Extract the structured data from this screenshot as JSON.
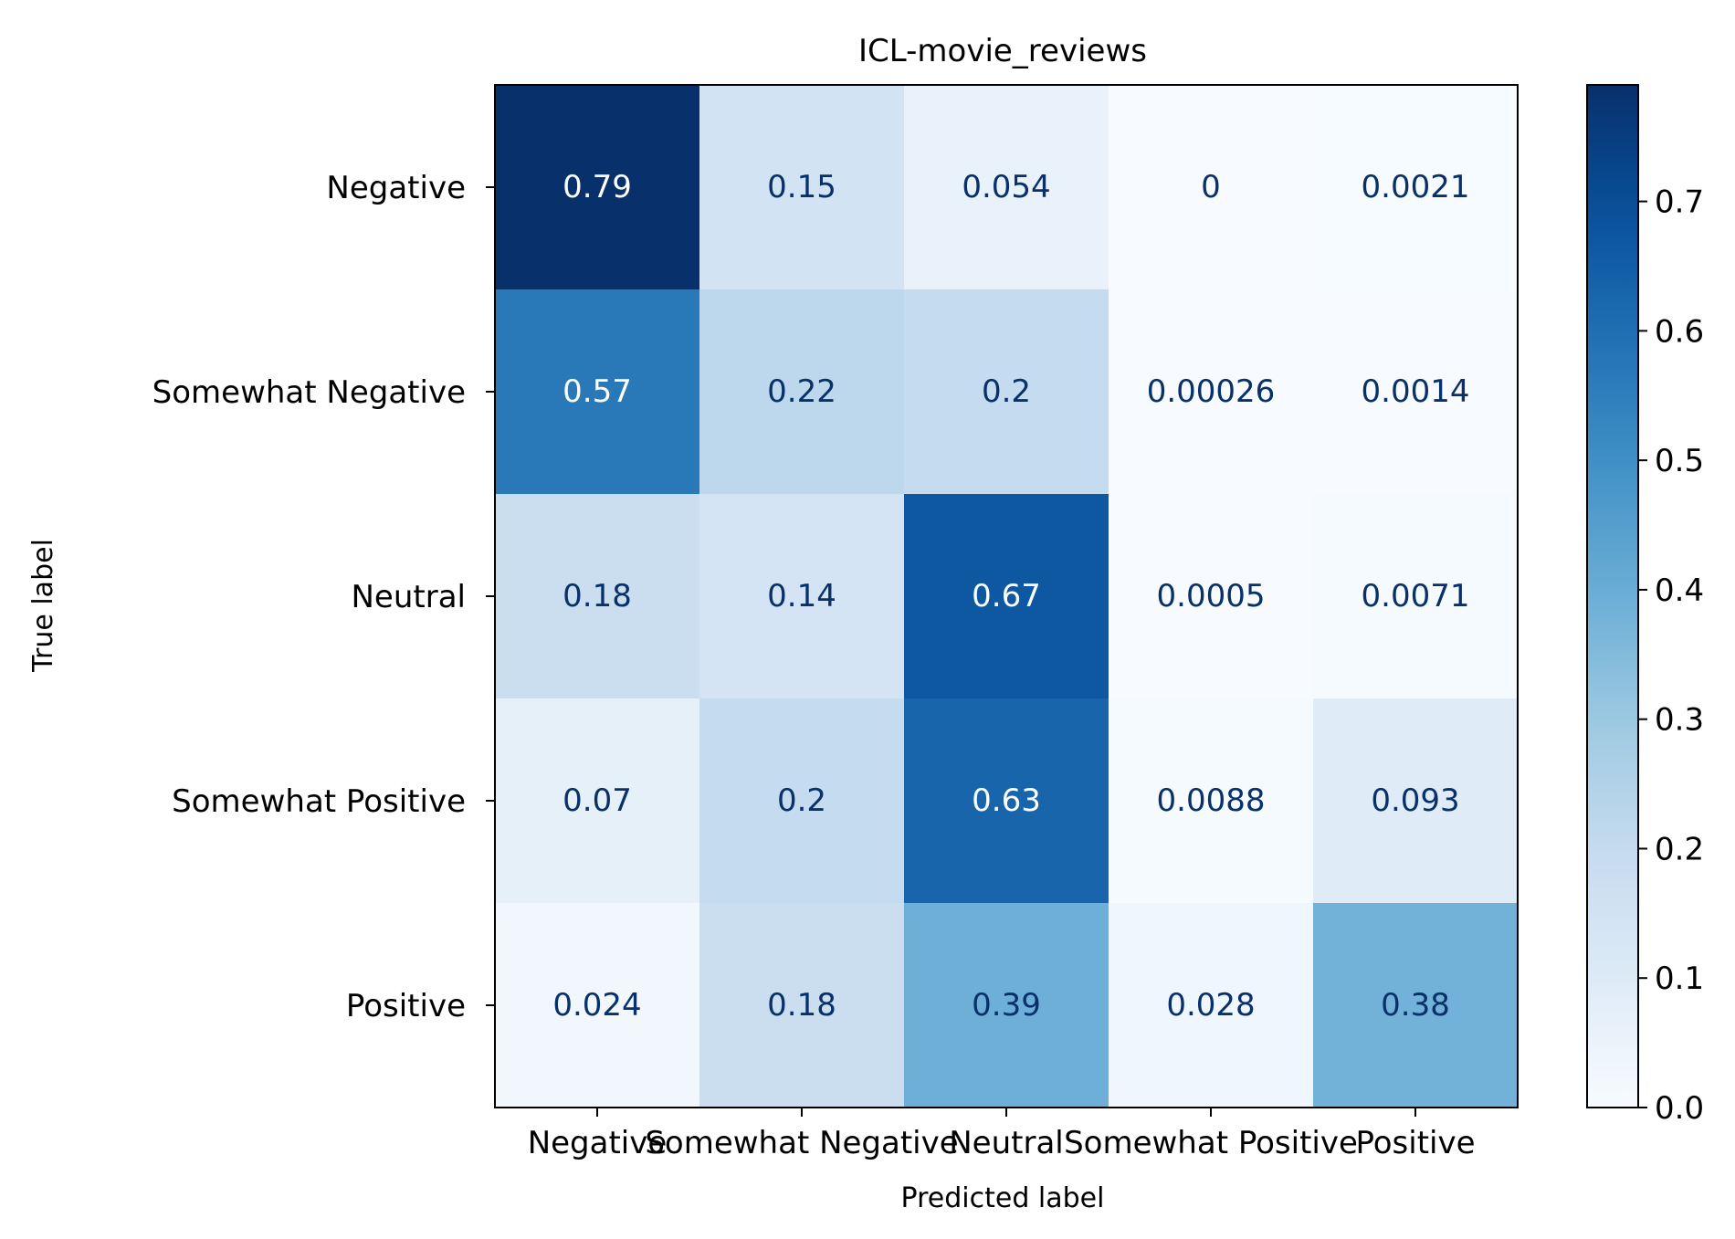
{
  "chart_data": {
    "type": "heatmap",
    "title": "ICL-movie_reviews",
    "xlabel": "Predicted label",
    "ylabel": "True label",
    "x_categories": [
      "Negative",
      "Somewhat Negative",
      "Neutral",
      "Somewhat Positive",
      "Positive"
    ],
    "y_categories": [
      "Negative",
      "Somewhat Negative",
      "Neutral",
      "Somewhat Positive",
      "Positive"
    ],
    "values": [
      [
        0.79,
        0.15,
        0.054,
        0,
        0.0021
      ],
      [
        0.57,
        0.22,
        0.2,
        0.00026,
        0.0014
      ],
      [
        0.18,
        0.14,
        0.67,
        0.0005,
        0.0071
      ],
      [
        0.07,
        0.2,
        0.63,
        0.0088,
        0.093
      ],
      [
        0.024,
        0.18,
        0.39,
        0.028,
        0.38
      ]
    ],
    "cell_labels": [
      [
        "0.79",
        "0.15",
        "0.054",
        "0",
        "0.0021"
      ],
      [
        "0.57",
        "0.22",
        "0.2",
        "0.00026",
        "0.0014"
      ],
      [
        "0.18",
        "0.14",
        "0.67",
        "0.0005",
        "0.0071"
      ],
      [
        "0.07",
        "0.2",
        "0.63",
        "0.0088",
        "0.093"
      ],
      [
        "0.024",
        "0.18",
        "0.39",
        "0.028",
        "0.38"
      ]
    ],
    "colormap": "Blues",
    "colorbar": {
      "vmin": 0,
      "vmax": 0.79,
      "ticks": [
        0.0,
        0.1,
        0.2,
        0.3,
        0.4,
        0.5,
        0.6,
        0.7
      ],
      "tick_labels": [
        "0.0",
        "0.1",
        "0.2",
        "0.3",
        "0.4",
        "0.5",
        "0.6",
        "0.7"
      ]
    },
    "text_color_dark": "#08306b",
    "text_color_light": "#ffffff",
    "grid": false
  }
}
